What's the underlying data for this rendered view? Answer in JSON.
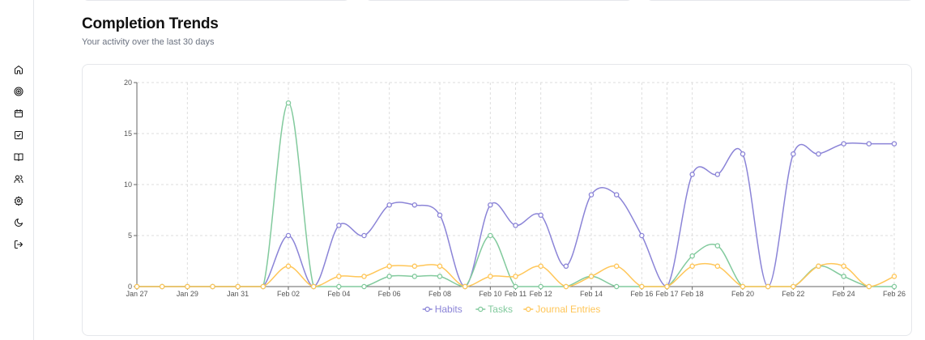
{
  "header": {
    "title": "Completion Trends",
    "subtitle": "Your activity over the last 30 days"
  },
  "sidebar": {
    "icons": [
      "home-icon",
      "target-icon",
      "calendar-icon",
      "checkbox-icon",
      "book-icon",
      "users-icon",
      "gear-icon",
      "moon-icon",
      "logout-icon"
    ]
  },
  "colors": {
    "habits": "#8b84d7",
    "tasks": "#82ca9d",
    "journal": "#ffc658"
  },
  "chart_data": {
    "type": "line",
    "x": [
      "Jan 27",
      "Jan 28",
      "Jan 29",
      "Jan 30",
      "Jan 31",
      "Feb 01",
      "Feb 02",
      "Feb 03",
      "Feb 04",
      "Feb 05",
      "Feb 06",
      "Feb 07",
      "Feb 08",
      "Feb 09",
      "Feb 10",
      "Feb 11",
      "Feb 12",
      "Feb 13",
      "Feb 14",
      "Feb 15",
      "Feb 16",
      "Feb 17",
      "Feb 18",
      "Feb 19",
      "Feb 20",
      "Feb 21",
      "Feb 22",
      "Feb 23",
      "Feb 24",
      "Feb 25",
      "Feb 26"
    ],
    "xtick_labels": [
      "Jan 27",
      "Jan 29",
      "Jan 31",
      "Feb 02",
      "Feb 04",
      "Feb 06",
      "Feb 08",
      "Feb 10",
      "Feb 11",
      "Feb 12",
      "Feb 14",
      "Feb 16",
      "Feb 17",
      "Feb 18",
      "Feb 20",
      "Feb 22",
      "Feb 24",
      "Feb 26"
    ],
    "yticks": [
      0,
      5,
      10,
      15,
      20
    ],
    "ylim": [
      0,
      20
    ],
    "grid": true,
    "legend_position": "bottom",
    "series": [
      {
        "name": "Habits",
        "color": "#8b84d7",
        "values": [
          0,
          0,
          0,
          0,
          0,
          0,
          5,
          0,
          6,
          5,
          8,
          8,
          7,
          0,
          8,
          6,
          7,
          2,
          9,
          9,
          5,
          0,
          11,
          11,
          13,
          0,
          13,
          13,
          14,
          14,
          14
        ]
      },
      {
        "name": "Tasks",
        "color": "#82ca9d",
        "values": [
          0,
          0,
          0,
          0,
          0,
          0,
          18,
          0,
          0,
          0,
          1,
          1,
          1,
          0,
          5,
          0,
          0,
          0,
          1,
          0,
          0,
          0,
          3,
          4,
          0,
          0,
          0,
          2,
          1,
          0,
          0
        ]
      },
      {
        "name": "Journal Entries",
        "color": "#ffc658",
        "values": [
          0,
          0,
          0,
          0,
          0,
          0,
          2,
          0,
          1,
          1,
          2,
          2,
          2,
          0,
          1,
          1,
          2,
          0,
          1,
          2,
          0,
          0,
          2,
          2,
          0,
          0,
          0,
          2,
          2,
          0,
          1
        ]
      }
    ]
  }
}
